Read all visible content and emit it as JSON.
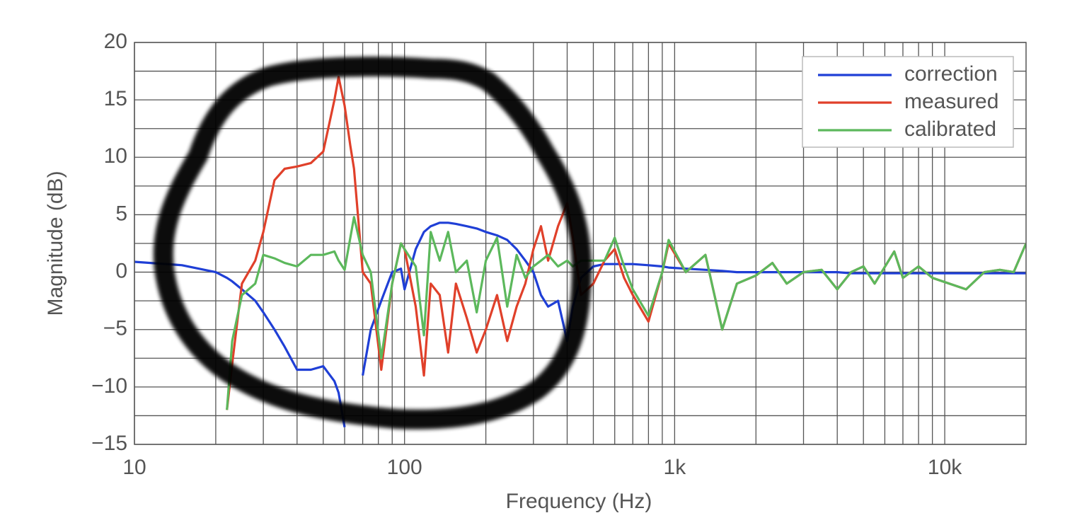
{
  "chart_data": {
    "type": "line",
    "x_label": "Frequency (Hz)",
    "y_label": "Magnitude (dB)",
    "x": [
      10,
      15,
      20,
      22,
      23,
      25,
      28,
      30,
      33,
      36,
      40,
      45,
      50,
      55,
      57,
      60,
      63,
      65,
      70,
      75,
      82,
      90,
      97,
      100,
      110,
      118,
      125,
      135,
      145,
      155,
      170,
      185,
      200,
      220,
      240,
      260,
      280,
      300,
      320,
      340,
      370,
      400,
      420,
      450,
      500,
      550,
      600,
      650,
      700,
      800,
      900,
      950,
      1100,
      1300,
      1500,
      1700,
      2000,
      2300,
      2600,
      3000,
      3500,
      4000,
      4500,
      5000,
      5500,
      6500,
      7000,
      8000,
      9000,
      12000,
      14000,
      16000,
      18000,
      20000
    ],
    "series": [
      {
        "name": "correction",
        "color": "#1f3fd6",
        "values": [
          0.9,
          0.6,
          0,
          -0.5,
          -0.8,
          -1.5,
          -2.5,
          -3.5,
          -5,
          -6.5,
          -8.5,
          -8.5,
          -8.2,
          -9.5,
          -10.5,
          -13.5,
          null,
          null,
          -9,
          -5,
          -2.5,
          0,
          0.3,
          -1.5,
          2,
          3.5,
          4,
          4.3,
          4.3,
          4.2,
          4,
          3.8,
          3.5,
          3.2,
          2.8,
          2,
          1,
          0,
          -2,
          -3,
          -2.5,
          -6,
          -3,
          -0.5,
          0.5,
          0.7,
          0.7,
          0.7,
          0.7,
          0.6,
          0.5,
          0.4,
          0.3,
          0.2,
          0.1,
          0,
          0,
          0,
          0,
          0,
          0,
          0,
          -0.1,
          -0.1,
          -0.1,
          -0.1,
          -0.1,
          -0.1,
          -0.1,
          -0.1,
          -0.1,
          -0.1,
          -0.1,
          -0.1
        ]
      },
      {
        "name": "measured",
        "color": "#e0402a",
        "values": [
          null,
          null,
          null,
          -12,
          -8,
          -1,
          1,
          3.5,
          8,
          9,
          9.2,
          9.5,
          10.5,
          15,
          17,
          14.5,
          11,
          9,
          0,
          -1,
          -8.5,
          -1,
          2.5,
          2,
          -3,
          -9,
          -1,
          -2,
          -7,
          -1,
          -4,
          -7,
          -5,
          -2,
          -6,
          -3,
          -1,
          2,
          4,
          1,
          4,
          6,
          3,
          -2,
          -1,
          1,
          2,
          -0.5,
          -2,
          -4.3,
          0,
          2.5,
          0,
          1.5,
          -5,
          -1,
          -0.3,
          0.8,
          -1,
          0,
          0.2,
          -1.5,
          0,
          0.5,
          -1,
          1.8,
          -0.5,
          0.5,
          -0.5,
          -1.5,
          0,
          0.2,
          0,
          2.5
        ]
      },
      {
        "name": "calibrated",
        "color": "#5cb85c",
        "values": [
          null,
          null,
          null,
          -12,
          -6,
          -2,
          -1,
          1.5,
          1.2,
          0.8,
          0.5,
          1.5,
          1.5,
          1.8,
          1,
          0.2,
          3,
          4.8,
          1.5,
          0,
          -7.5,
          -1,
          2.5,
          2,
          0.5,
          -5.5,
          3.5,
          1,
          3.5,
          0,
          1,
          -3.5,
          1,
          3,
          -3,
          1.5,
          -0.5,
          0.5,
          1,
          1.5,
          0.5,
          1,
          0.5,
          1,
          1,
          1,
          3,
          0.5,
          -1.5,
          -3.8,
          0,
          2.8,
          0,
          1.5,
          -5,
          -1,
          -0.3,
          0.8,
          -1,
          0,
          0.2,
          -1.5,
          0,
          0.5,
          -1,
          1.8,
          -0.5,
          0.5,
          -0.5,
          -1.5,
          0,
          0.2,
          0,
          2.5
        ]
      }
    ],
    "x_log": true,
    "xlim": [
      10,
      20000
    ],
    "ylim": [
      -15,
      20
    ],
    "xticks": [
      10,
      100,
      {
        "value": 1000,
        "label": "1k"
      },
      {
        "value": 10000,
        "label": "10k"
      }
    ],
    "yticks": [
      {
        "value": -15,
        "label": "−15"
      },
      {
        "value": -10,
        "label": "−10"
      },
      {
        "value": -5,
        "label": "−5"
      },
      0,
      5,
      10,
      15,
      20
    ],
    "xminor": [
      20,
      30,
      40,
      50,
      60,
      70,
      80,
      90,
      200,
      300,
      400,
      500,
      600,
      700,
      800,
      900,
      2000,
      3000,
      4000,
      5000,
      6000,
      7000,
      8000,
      9000
    ],
    "yminor": [
      -12.5,
      -7.5,
      -2.5,
      2.5,
      7.5,
      12.5,
      17.5
    ],
    "grid": true,
    "legend": "upper right"
  }
}
